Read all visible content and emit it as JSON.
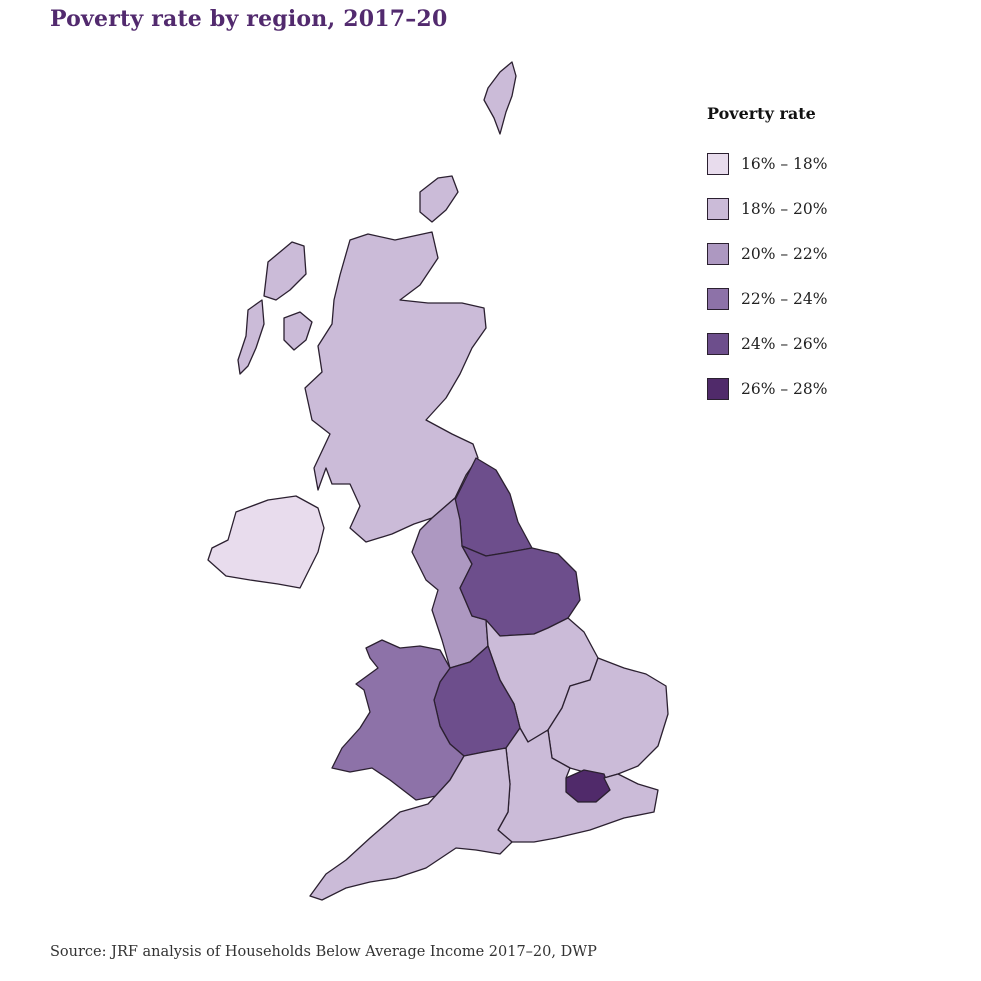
{
  "title": "Poverty rate by region, 2017–20",
  "legend": {
    "title": "Poverty rate",
    "items": [
      {
        "label": "16% – 18%",
        "color": "#e8dced"
      },
      {
        "label": "18% – 20%",
        "color": "#cbbbd8"
      },
      {
        "label": "20% – 22%",
        "color": "#ad98c1"
      },
      {
        "label": "22% – 24%",
        "color": "#8d72a8"
      },
      {
        "label": "24% – 26%",
        "color": "#6d4e8c"
      },
      {
        "label": "26% – 28%",
        "color": "#502a6a"
      }
    ]
  },
  "regions": [
    {
      "name": "Scotland",
      "bin": 1
    },
    {
      "name": "Northern Ireland",
      "bin": 0
    },
    {
      "name": "North East",
      "bin": 4
    },
    {
      "name": "North West",
      "bin": 2
    },
    {
      "name": "Yorkshire and the Humber",
      "bin": 4
    },
    {
      "name": "East Midlands",
      "bin": 1
    },
    {
      "name": "West Midlands",
      "bin": 4
    },
    {
      "name": "Wales",
      "bin": 3
    },
    {
      "name": "East of England",
      "bin": 1
    },
    {
      "name": "London",
      "bin": 5
    },
    {
      "name": "South East",
      "bin": 1
    },
    {
      "name": "South West",
      "bin": 1
    }
  ],
  "source": "Source: JRF analysis of Households Below Average Income 2017–20, DWP"
}
